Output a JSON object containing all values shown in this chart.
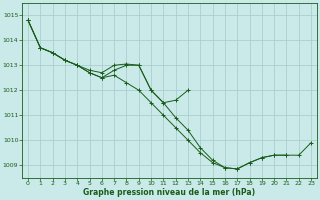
{
  "title": "Graphe pression niveau de la mer (hPa)",
  "background_color": "#caeaea",
  "grid_color": "#aacece",
  "line_color": "#1a5c1a",
  "marker_color": "#1a5c1a",
  "xlim": [
    -0.5,
    23.5
  ],
  "ylim": [
    1008.5,
    1015.5
  ],
  "xticks": [
    0,
    1,
    2,
    3,
    4,
    5,
    6,
    7,
    8,
    9,
    10,
    11,
    12,
    13,
    14,
    15,
    16,
    17,
    18,
    19,
    20,
    21,
    22,
    23
  ],
  "yticks": [
    1009,
    1010,
    1011,
    1012,
    1013,
    1014,
    1015
  ],
  "series": [
    {
      "x": [
        0,
        1,
        2,
        3,
        4,
        5,
        6,
        7,
        8,
        9,
        10,
        11,
        12,
        13
      ],
      "y": [
        1014.8,
        1013.7,
        1013.5,
        1013.2,
        1013.0,
        1012.8,
        1012.7,
        1013.0,
        1013.05,
        1013.0,
        1012.0,
        1011.5,
        1011.6,
        1012.0
      ]
    },
    {
      "x": [
        0,
        1,
        2,
        3,
        4,
        5,
        6,
        7,
        8,
        9,
        10,
        11,
        12,
        13,
        14,
        15,
        16,
        17,
        18,
        19,
        20,
        21
      ],
      "y": [
        1014.8,
        1013.7,
        1013.5,
        1013.2,
        1013.0,
        1012.7,
        1012.5,
        1012.8,
        1013.0,
        1013.0,
        1012.0,
        1011.5,
        1010.9,
        1010.4,
        1009.7,
        1009.2,
        1008.9,
        1008.85,
        1009.1,
        1009.3,
        1009.4,
        1009.4
      ]
    },
    {
      "x": [
        0,
        1,
        2,
        3,
        4,
        5,
        6,
        7,
        8,
        9,
        10,
        11,
        12,
        13,
        14,
        15,
        16,
        17,
        18,
        19,
        20,
        21,
        22,
        23
      ],
      "y": [
        1014.8,
        1013.7,
        1013.5,
        1013.2,
        1013.0,
        1012.7,
        1012.5,
        1012.6,
        1012.3,
        1012.0,
        1011.5,
        1011.0,
        1010.5,
        1010.0,
        1009.5,
        1009.1,
        1008.9,
        1008.85,
        1009.1,
        1009.3,
        1009.4,
        1009.4,
        1009.4,
        1009.9
      ]
    }
  ]
}
